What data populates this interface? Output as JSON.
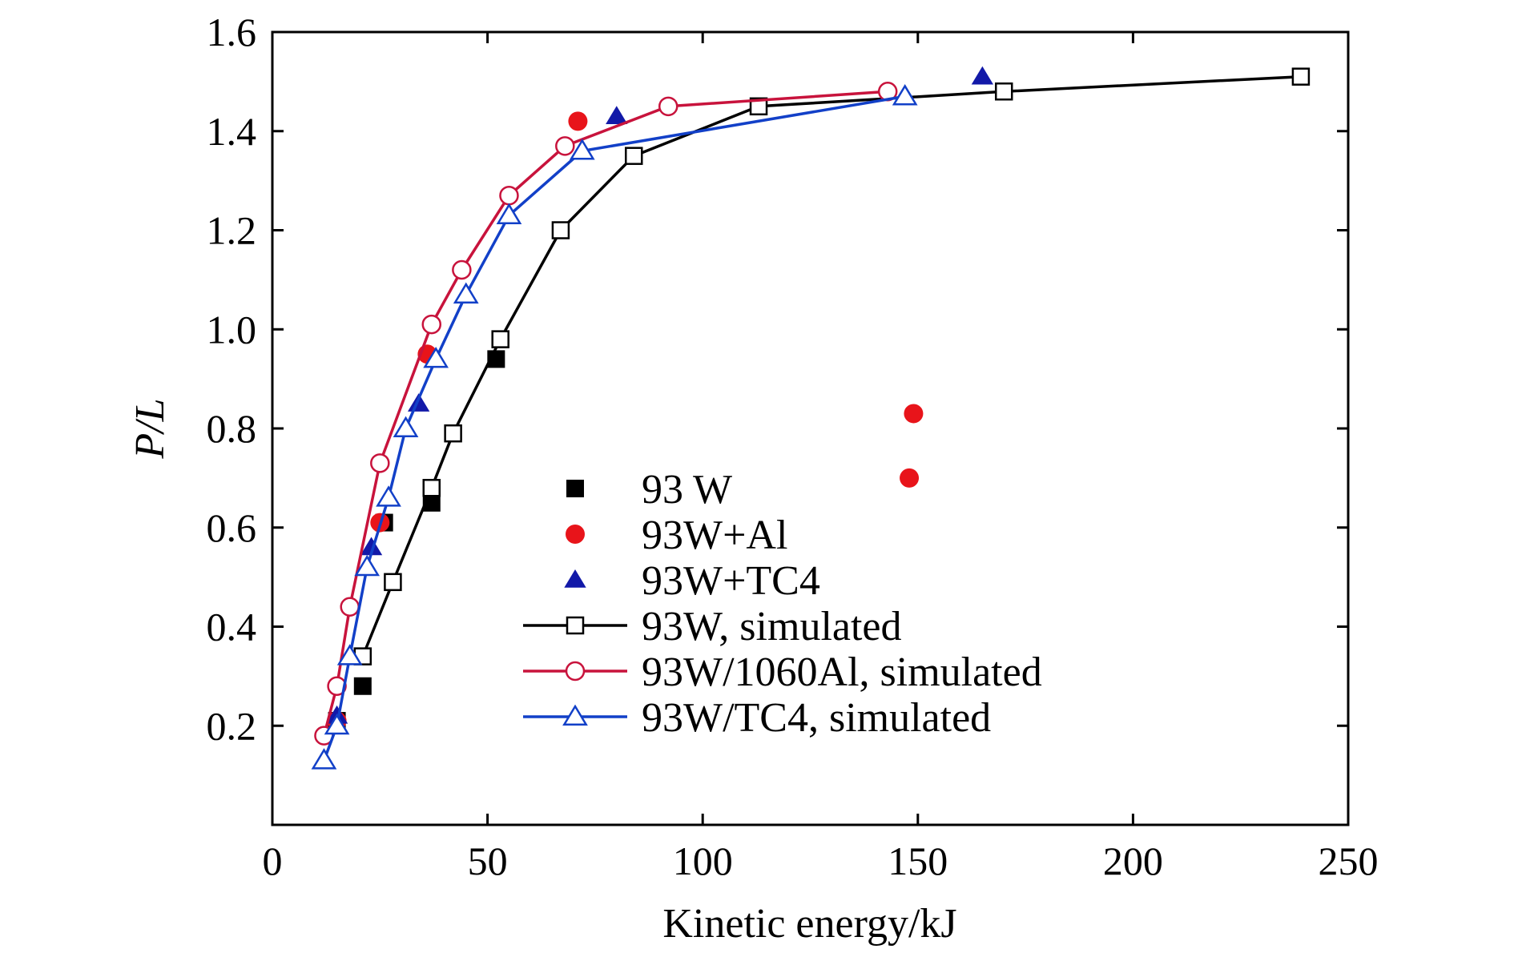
{
  "chart_data": {
    "type": "scatter",
    "xlabel": "Kinetic energy/kJ",
    "ylabel": "P/L",
    "xlim": [
      0,
      250
    ],
    "ylim": [
      0,
      1.6
    ],
    "xticks": [
      "0",
      "50",
      "100",
      "150",
      "200",
      "250"
    ],
    "yticks": [
      "0.2",
      "0.4",
      "0.6",
      "0.8",
      "1.0",
      "1.2",
      "1.4",
      "1.6"
    ],
    "grid": false,
    "legend_position": "inside-lower-center",
    "series": [
      {
        "name": "93 W",
        "kind": "points",
        "marker": "square-filled",
        "color": "#000000",
        "points": [
          [
            15,
            0.21
          ],
          [
            21,
            0.28
          ],
          [
            26,
            0.61
          ],
          [
            37,
            0.65
          ],
          [
            52,
            0.94
          ]
        ]
      },
      {
        "name": "93W+Al",
        "kind": "points",
        "marker": "circle-filled",
        "color": "#e8141a",
        "points": [
          [
            15,
            0.21
          ],
          [
            25,
            0.61
          ],
          [
            36,
            0.95
          ],
          [
            71,
            1.42
          ],
          [
            148,
            0.7
          ],
          [
            149,
            0.83
          ]
        ]
      },
      {
        "name": "93W+TC4",
        "kind": "points",
        "marker": "triangle-filled",
        "color": "#1219a8",
        "points": [
          [
            15,
            0.22
          ],
          [
            23,
            0.56
          ],
          [
            34,
            0.85
          ],
          [
            80,
            1.43
          ],
          [
            165,
            1.51
          ]
        ]
      },
      {
        "name": "93W, simulated",
        "kind": "line",
        "marker": "square-open",
        "color": "#000000",
        "points": [
          [
            21,
            0.34
          ],
          [
            28,
            0.49
          ],
          [
            37,
            0.68
          ],
          [
            42,
            0.79
          ],
          [
            53,
            0.98
          ],
          [
            67,
            1.2
          ],
          [
            84,
            1.35
          ],
          [
            113,
            1.45
          ],
          [
            170,
            1.48
          ],
          [
            239,
            1.51
          ]
        ]
      },
      {
        "name": "93W/1060Al, simulated",
        "kind": "line",
        "marker": "circle-open",
        "color": "#c8133c",
        "points": [
          [
            12,
            0.18
          ],
          [
            15,
            0.28
          ],
          [
            18,
            0.44
          ],
          [
            25,
            0.73
          ],
          [
            37,
            1.01
          ],
          [
            44,
            1.12
          ],
          [
            55,
            1.27
          ],
          [
            68,
            1.37
          ],
          [
            92,
            1.45
          ],
          [
            143,
            1.48
          ]
        ]
      },
      {
        "name": "93W/TC4, simulated",
        "kind": "line",
        "marker": "triangle-open",
        "color": "#1240c8",
        "points": [
          [
            12,
            0.13
          ],
          [
            15,
            0.2
          ],
          [
            18,
            0.34
          ],
          [
            22,
            0.52
          ],
          [
            27,
            0.66
          ],
          [
            31,
            0.8
          ],
          [
            38,
            0.94
          ],
          [
            45,
            1.07
          ],
          [
            55,
            1.23
          ],
          [
            72,
            1.36
          ],
          [
            147,
            1.47
          ]
        ]
      }
    ]
  }
}
